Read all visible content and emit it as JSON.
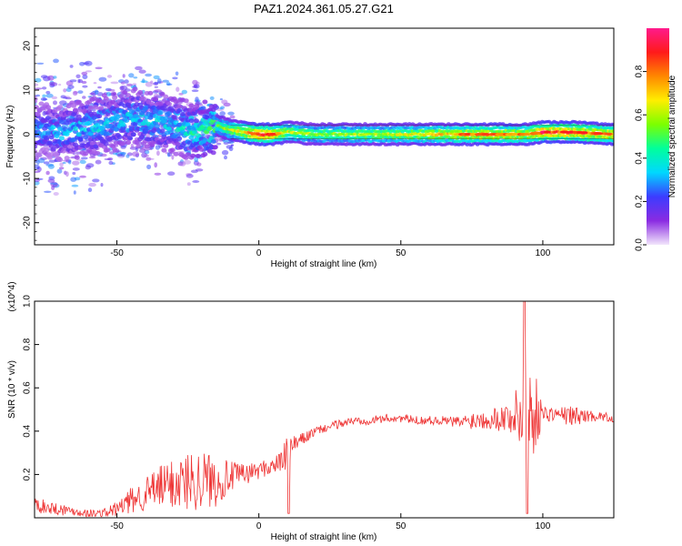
{
  "title": "PAZ1.2024.361.05.27.G21",
  "chart_data": [
    {
      "type": "heatmap",
      "xlabel": "Height of straight line (km)",
      "ylabel": "Frequency (Hz)",
      "xlim": [
        -79,
        125
      ],
      "ylim": [
        -25,
        24
      ],
      "x_ticks": [
        "-50",
        "0",
        "50",
        "100"
      ],
      "y_ticks": [
        "-20",
        "-10",
        "0",
        "10",
        "20"
      ],
      "colorbar": {
        "label": "Normalized spectral amplitude",
        "ticks": [
          "0.0",
          "0.2",
          "0.4",
          "0.6",
          "0.8"
        ],
        "range": [
          0,
          1
        ],
        "colors": [
          "#f2e6fb",
          "#8a2be2",
          "#3c3cff",
          "#00d8ff",
          "#00ff9c",
          "#7cff00",
          "#ffee00",
          "#ff8800",
          "#ff1a1a",
          "#ff1a8c"
        ]
      },
      "ridge": {
        "x": [
          -79,
          -70,
          -60,
          -50,
          -45,
          -40,
          -35,
          -30,
          -25,
          -20,
          -15,
          -10,
          -5,
          0,
          5,
          10,
          20,
          40,
          60,
          80,
          95,
          100,
          110,
          125
        ],
        "y": [
          1,
          0.5,
          1.5,
          3,
          4,
          3.5,
          3,
          2,
          1,
          1,
          2,
          1,
          0.5,
          0,
          0,
          0.5,
          0,
          0,
          0,
          0,
          0,
          0.5,
          0.5,
          0
        ],
        "amplitude": [
          0.3,
          0.3,
          0.35,
          0.35,
          0.35,
          0.35,
          0.35,
          0.35,
          0.4,
          0.45,
          0.5,
          0.6,
          0.7,
          0.85,
          0.8,
          0.6,
          0.55,
          0.6,
          0.65,
          0.75,
          0.7,
          0.85,
          0.8,
          0.75
        ]
      },
      "grid": false
    },
    {
      "type": "line",
      "xlabel": "Height of straight line (km)",
      "ylabel": "SNR (10 * v/v)",
      "y_multiplier": "(x10^4)",
      "xlim": [
        -79,
        125
      ],
      "ylim": [
        0,
        1.0
      ],
      "x_ticks": [
        "-50",
        "0",
        "50",
        "100"
      ],
      "y_ticks": [
        "0.2",
        "0.4",
        "0.6",
        "0.8",
        "1.0"
      ],
      "color": "#ee3333",
      "series": [
        {
          "x": [
            -79,
            -75,
            -70,
            -65,
            -60,
            -55,
            -50,
            -45,
            -40,
            -35,
            -30,
            -25,
            -20,
            -15,
            -10,
            -5,
            0,
            5,
            8,
            10,
            12,
            15,
            20,
            25,
            30,
            35,
            40,
            45,
            50,
            55,
            60,
            65,
            70,
            75,
            80,
            85,
            90,
            93,
            95,
            97,
            100,
            105,
            110,
            115,
            120,
            125
          ],
          "values": [
            0.06,
            0.05,
            0.04,
            0.03,
            0.02,
            0.02,
            0.04,
            0.08,
            0.11,
            0.14,
            0.16,
            0.17,
            0.18,
            0.17,
            0.19,
            0.2,
            0.22,
            0.24,
            0.26,
            0.3,
            0.33,
            0.36,
            0.4,
            0.42,
            0.44,
            0.45,
            0.45,
            0.46,
            0.46,
            0.45,
            0.45,
            0.45,
            0.44,
            0.45,
            0.46,
            0.46,
            0.47,
            0.48,
            0.5,
            0.49,
            0.48,
            0.48,
            0.47,
            0.47,
            0.47,
            0.46
          ],
          "spread": [
            0.04,
            0.03,
            0.03,
            0.02,
            0.02,
            0.02,
            0.04,
            0.06,
            0.08,
            0.1,
            0.12,
            0.14,
            0.14,
            0.12,
            0.07,
            0.05,
            0.04,
            0.04,
            0.05,
            0.08,
            0.05,
            0.03,
            0.02,
            0.02,
            0.02,
            0.02,
            0.02,
            0.02,
            0.02,
            0.02,
            0.02,
            0.02,
            0.03,
            0.04,
            0.05,
            0.06,
            0.1,
            0.22,
            0.32,
            0.2,
            0.04,
            0.03,
            0.05,
            0.03,
            0.02,
            0.02
          ]
        }
      ],
      "grid": false
    }
  ]
}
